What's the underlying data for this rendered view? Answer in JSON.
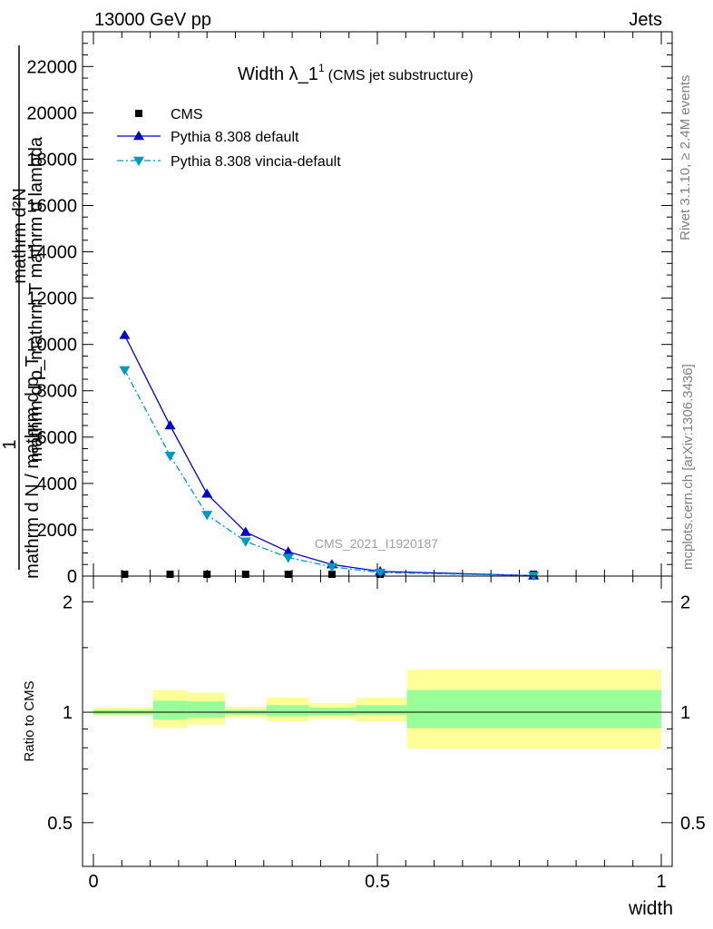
{
  "header": {
    "left": "13000 GeV pp",
    "right": "Jets"
  },
  "side_text": {
    "rivet": "Rivet 3.1.10, ≥ 2.4M events",
    "mcplots": "mcplots.cern.ch [arXiv:1306.3436]"
  },
  "chart_data": [
    {
      "type": "line",
      "title": "Width λ_1",
      "title_superscript": "1",
      "subtitle": "(CMS jet substructure)",
      "watermark": "CMS_2021_I1920187",
      "ylabel_upper": "mathrm d²N",
      "ylabel_lower": "mathrm d p_mathrm T mathrm d lambda",
      "ylabel_prefix": "1",
      "ylabel_denominator": "mathrm d N / mathrm d p_T",
      "xlim": [
        0,
        1
      ],
      "ylim": [
        0,
        23500
      ],
      "y_ticks": [
        0,
        2000,
        4000,
        6000,
        8000,
        10000,
        12000,
        14000,
        16000,
        18000,
        20000,
        22000
      ],
      "y_tick_labels": [
        "0",
        "2000",
        "4000",
        "6000",
        "8000",
        "10000",
        "12000",
        "14000",
        "16000",
        "18000",
        "20000",
        "22000"
      ],
      "legend": {
        "placement": "top-left"
      },
      "series": [
        {
          "name": "CMS",
          "marker": "square",
          "color": "#000000",
          "x": [
            0.055,
            0.135,
            0.2,
            0.268,
            0.343,
            0.42,
            0.505,
            0.775
          ],
          "y": [
            0,
            0,
            0,
            0,
            0,
            0,
            0,
            0
          ]
        },
        {
          "name": "Pythia 8.308 default",
          "marker": "triangle-up",
          "color": "#0000cc",
          "line": "solid",
          "x": [
            0.055,
            0.135,
            0.2,
            0.268,
            0.343,
            0.42,
            0.505,
            0.775
          ],
          "y": [
            10400,
            6500,
            3550,
            1900,
            1050,
            500,
            200,
            20
          ]
        },
        {
          "name": "Pythia 8.308 vincia-default",
          "marker": "triangle-down",
          "color": "#0099bb",
          "line": "dashdot",
          "x": [
            0.055,
            0.135,
            0.2,
            0.268,
            0.343,
            0.42,
            0.505,
            0.775
          ],
          "y": [
            8900,
            5200,
            2650,
            1500,
            800,
            400,
            150,
            20
          ]
        }
      ]
    },
    {
      "type": "area",
      "ylabel": "Ratio to CMS",
      "xlabel": "width",
      "xlim": [
        0,
        1
      ],
      "ylim": [
        0.38,
        2.35
      ],
      "y_scale": "log",
      "x_ticks": [
        0,
        0.5,
        1
      ],
      "x_tick_labels": [
        "0",
        "0.5",
        "1"
      ],
      "y_ticks": [
        0.5,
        1,
        2
      ],
      "y_tick_labels": [
        "0.5",
        "1",
        "2"
      ],
      "reference_line": 1,
      "band_colors": {
        "outer": "#ffff99",
        "inner": "#99ff99"
      },
      "bands": [
        {
          "x": [
            0,
            0.105
          ],
          "inner": [
            0.985,
            1.015
          ],
          "outer": [
            0.975,
            1.03
          ]
        },
        {
          "x": [
            0.105,
            0.165
          ],
          "inner": [
            0.955,
            1.075
          ],
          "outer": [
            0.905,
            1.15
          ]
        },
        {
          "x": [
            0.165,
            0.232
          ],
          "inner": [
            0.965,
            1.07
          ],
          "outer": [
            0.925,
            1.13
          ]
        },
        {
          "x": [
            0.232,
            0.305
          ],
          "inner": [
            0.985,
            1.015
          ],
          "outer": [
            0.965,
            1.035
          ]
        },
        {
          "x": [
            0.305,
            0.38
          ],
          "inner": [
            0.975,
            1.045
          ],
          "outer": [
            0.945,
            1.095
          ]
        },
        {
          "x": [
            0.38,
            0.463
          ],
          "inner": [
            0.98,
            1.03
          ],
          "outer": [
            0.96,
            1.06
          ]
        },
        {
          "x": [
            0.463,
            0.552
          ],
          "inner": [
            0.985,
            1.045
          ],
          "outer": [
            0.945,
            1.095
          ]
        },
        {
          "x": [
            0.552,
            1.0
          ],
          "inner": [
            0.905,
            1.15
          ],
          "outer": [
            0.795,
            1.305
          ]
        }
      ]
    }
  ]
}
